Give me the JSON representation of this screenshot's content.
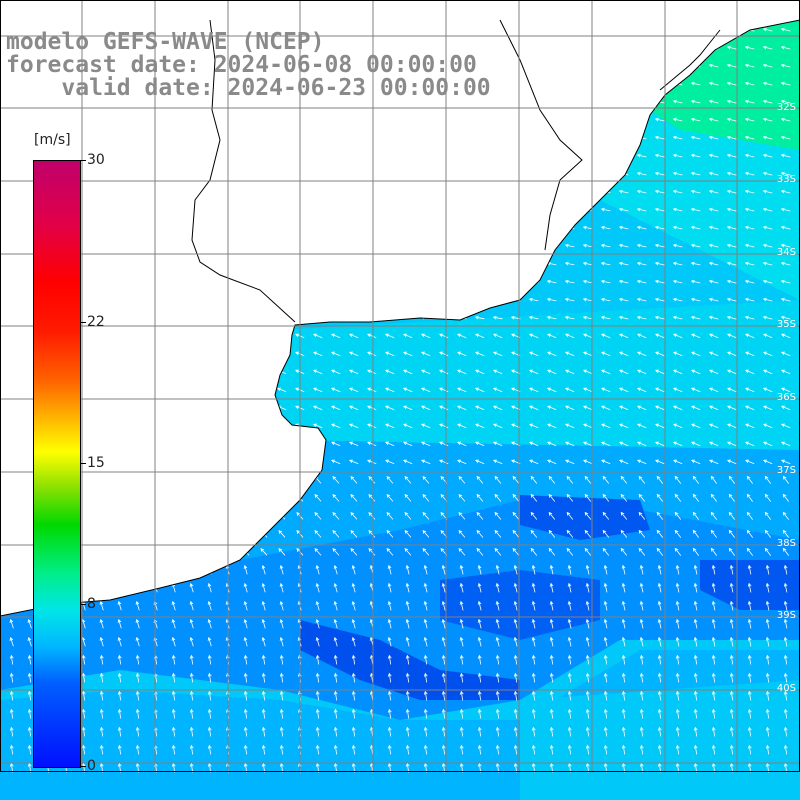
{
  "header": {
    "line1": "modelo GEFS-WAVE (NCEP)",
    "line2": "forecast date: 2024-06-08 00:00:00",
    "line3": "    valid date: 2024-06-23 00:00:00"
  },
  "colorbar": {
    "unit": "[m/s]",
    "labels": [
      {
        "value": 30,
        "text": "30"
      },
      {
        "value": 22,
        "text": "22"
      },
      {
        "value": 15,
        "text": "15"
      },
      {
        "value": 8,
        "text": "8"
      },
      {
        "value": 0,
        "text": "0"
      }
    ],
    "min": 0,
    "max": 30
  },
  "map": {
    "latitude_labels": [
      "32S",
      "33S",
      "34S",
      "35S",
      "36S",
      "37S",
      "38S",
      "39S",
      "40S"
    ],
    "land_color": "#ffffff",
    "coast_color": "#000000",
    "grid_color": "#808080",
    "arrow_color": "#ffffff",
    "field_colors": {
      "deep_blue": "#0050f0",
      "blue": "#0088ff",
      "light_blue": "#00b4ff",
      "cyan": "#00dcf0",
      "aqua_green": "#00eea0"
    }
  }
}
